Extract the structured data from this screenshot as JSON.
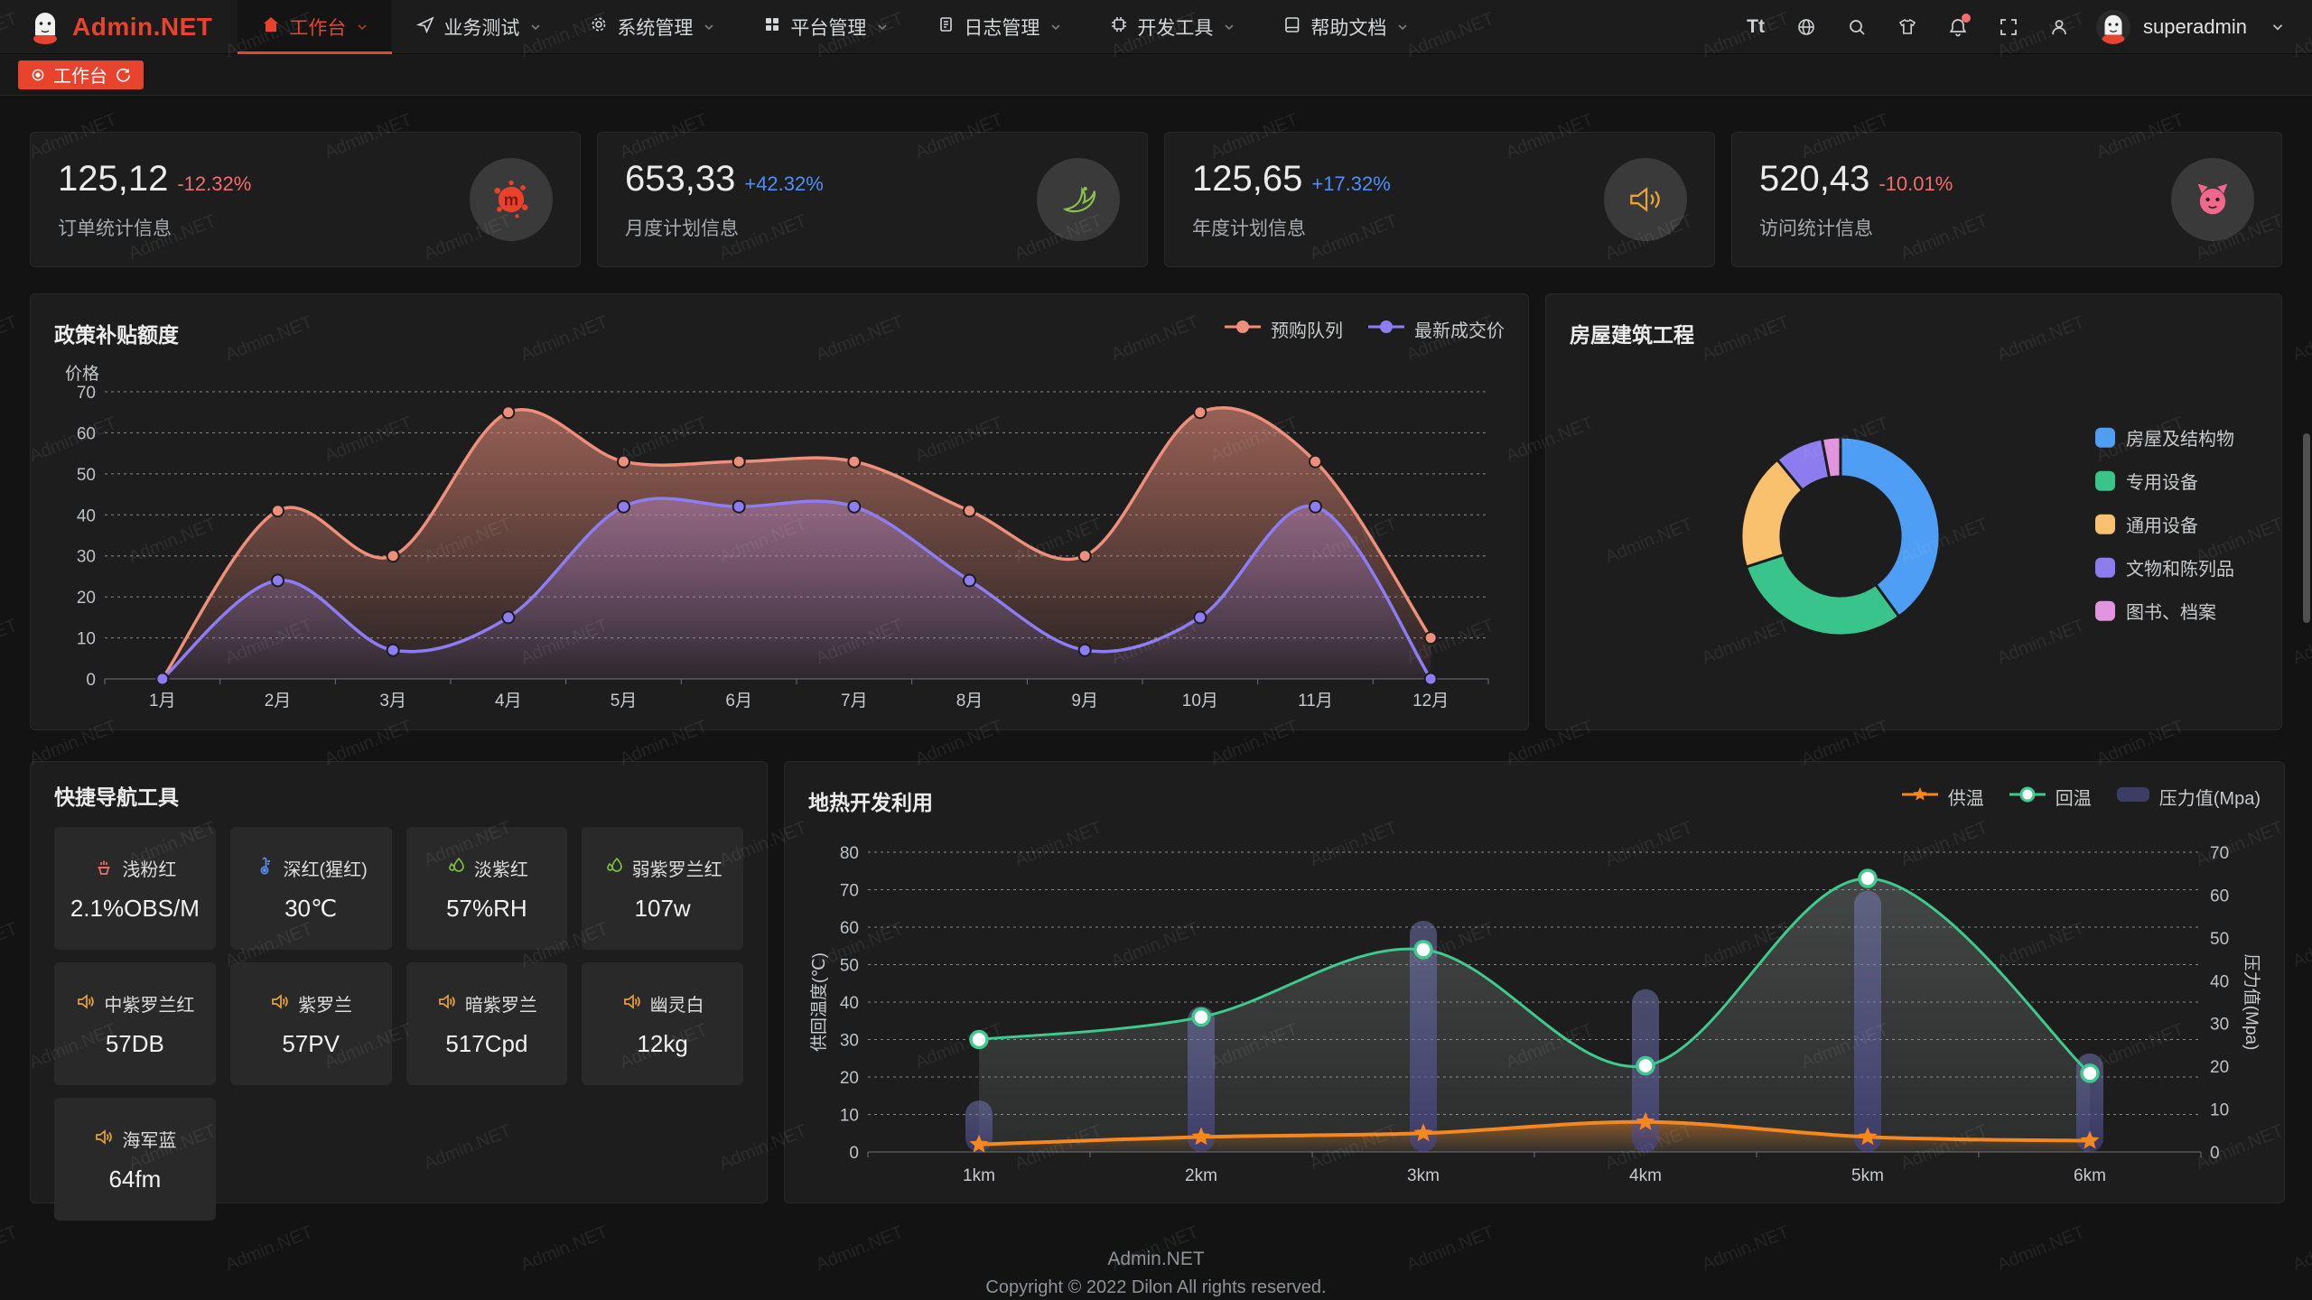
{
  "header": {
    "brand": "Admin.NET",
    "nav": [
      {
        "label": "工作台",
        "icon": "home-icon",
        "active": true
      },
      {
        "label": "业务测试",
        "icon": "send-icon"
      },
      {
        "label": "系统管理",
        "icon": "gear-icon"
      },
      {
        "label": "平台管理",
        "icon": "grid-icon"
      },
      {
        "label": "日志管理",
        "icon": "log-icon"
      },
      {
        "label": "开发工具",
        "icon": "cpu-icon"
      },
      {
        "label": "帮助文档",
        "icon": "book-icon"
      }
    ],
    "right_icons": [
      "font-size-icon",
      "language-icon",
      "search-icon",
      "theme-icon",
      "notification-icon",
      "fullscreen-icon",
      "user-icon"
    ],
    "font_size_icon_text": "Tt",
    "notification_badge": true,
    "username": "superadmin"
  },
  "tabbar": {
    "tabs": [
      {
        "label": "工作台",
        "active": true,
        "refresh_icon": true
      }
    ]
  },
  "stats": {
    "cards": [
      {
        "value": "125,12",
        "delta": "-12.32%",
        "trend": "down",
        "label": "订单统计信息",
        "icon": "splat-icon",
        "icon_color": "#e8422d"
      },
      {
        "value": "653,33",
        "delta": "+42.32%",
        "trend": "up",
        "label": "月度计划信息",
        "icon": "bird-icon",
        "icon_color": "#8bc34a"
      },
      {
        "value": "125,65",
        "delta": "+17.32%",
        "trend": "up",
        "label": "年度计划信息",
        "icon": "speaker-icon",
        "icon_color": "#e6a23c"
      },
      {
        "value": "520,43",
        "delta": "-10.01%",
        "trend": "down",
        "label": "访问统计信息",
        "icon": "cat-icon",
        "icon_color": "#f2688c"
      }
    ]
  },
  "chart_data": [
    {
      "type": "line",
      "title": "政策补贴额度",
      "ylabel": "价格",
      "categories": [
        "1月",
        "2月",
        "3月",
        "4月",
        "5月",
        "6月",
        "7月",
        "8月",
        "9月",
        "10月",
        "11月",
        "12月"
      ],
      "ylim": [
        0,
        70
      ],
      "ystep": 10,
      "grid": "dashed",
      "legend_position": "top-right",
      "series": [
        {
          "name": "预购队列",
          "color": "#ee8f7c",
          "values": [
            0,
            41,
            30,
            65,
            53,
            53,
            53,
            41,
            30,
            65,
            53,
            10
          ]
        },
        {
          "name": "最新成交价",
          "color": "#8d7cf3",
          "values": [
            0,
            24,
            7,
            15,
            42,
            42,
            42,
            24,
            7,
            15,
            42,
            0
          ]
        }
      ]
    },
    {
      "type": "pie",
      "title": "房屋建筑工程",
      "donut": true,
      "legend_position": "right",
      "items": [
        {
          "name": "房屋及结构物",
          "value": 40,
          "color": "#4f9ef6"
        },
        {
          "name": "专用设备",
          "value": 30,
          "color": "#39c48c"
        },
        {
          "name": "通用设备",
          "value": 19,
          "color": "#f9c16d"
        },
        {
          "name": "文物和陈列品",
          "value": 8,
          "color": "#8d7cf0"
        },
        {
          "name": "图书、档案",
          "value": 3,
          "color": "#e394de"
        }
      ]
    },
    {
      "type": "combo",
      "title": "地热开发利用",
      "categories": [
        "1km",
        "2km",
        "3km",
        "4km",
        "5km",
        "6km"
      ],
      "left_axis": {
        "label": "供回温度(℃)",
        "min": 0,
        "max": 80,
        "step": 10
      },
      "right_axis": {
        "label": "压力值(Mpa)",
        "min": 0,
        "max": 70,
        "step": 10
      },
      "grid": "dashed",
      "legend_position": "top-right",
      "series": [
        {
          "name": "供温",
          "type": "line",
          "axis": "left",
          "marker": "star",
          "color": "#f5871f",
          "values": [
            2,
            4,
            5,
            8,
            4,
            3
          ]
        },
        {
          "name": "回温",
          "type": "line",
          "axis": "left",
          "marker": "circle",
          "color": "#3ec98e",
          "values": [
            30,
            36,
            54,
            23,
            73,
            21
          ]
        },
        {
          "name": "压力值(Mpa)",
          "type": "bar",
          "axis": "right",
          "color": "#6a6ab4",
          "values": [
            12,
            34,
            54,
            38,
            61,
            23
          ]
        }
      ]
    }
  ],
  "quick_nav": {
    "title": "快捷导航工具",
    "items": [
      {
        "name": "浅粉红",
        "value": "2.1%OBS/M",
        "icon": "fire-icon",
        "icon_color": "#f56c6c"
      },
      {
        "name": "深红(猩红)",
        "value": "30℃",
        "icon": "thermometer-icon",
        "icon_color": "#5b8ff9"
      },
      {
        "name": "淡紫红",
        "value": "57%RH",
        "icon": "leaf-icon",
        "icon_color": "#7bc043"
      },
      {
        "name": "弱紫罗兰红",
        "value": "107w",
        "icon": "leaf-icon",
        "icon_color": "#7bc043"
      },
      {
        "name": "中紫罗兰红",
        "value": "57DB",
        "icon": "speaker-icon",
        "icon_color": "#e6a23c"
      },
      {
        "name": "紫罗兰",
        "value": "57PV",
        "icon": "speaker-icon",
        "icon_color": "#e6a23c"
      },
      {
        "name": "暗紫罗兰",
        "value": "517Cpd",
        "icon": "speaker-icon",
        "icon_color": "#e6a23c"
      },
      {
        "name": "幽灵白",
        "value": "12kg",
        "icon": "speaker-icon",
        "icon_color": "#e6a23c"
      },
      {
        "name": "海军蓝",
        "value": "64fm",
        "icon": "speaker-icon",
        "icon_color": "#e6a23c"
      }
    ]
  },
  "footer": {
    "line1": "Admin.NET",
    "line2": "Copyright © 2022 Dilon All rights reserved."
  },
  "watermark": {
    "text": "Admin.NET"
  },
  "colors": {
    "accent": "#e8432d",
    "up": "#4e8ef7",
    "down": "#f56c6c",
    "page_bg": "#131313",
    "card_bg": "#1d1d1d"
  }
}
